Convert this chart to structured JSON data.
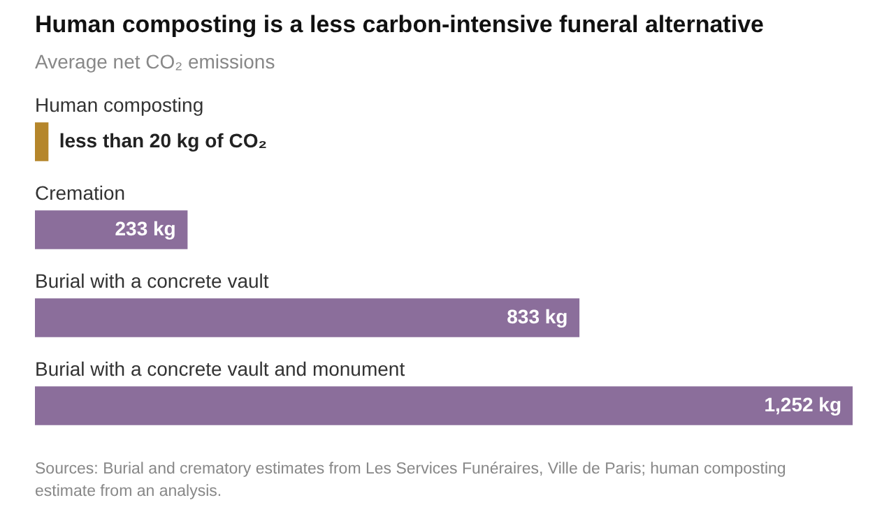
{
  "chart_data": {
    "type": "bar",
    "orientation": "horizontal",
    "title": "Human composting is a less carbon-intensive funeral alternative",
    "subtitle": "Average net CO₂ emissions",
    "categories": [
      "Human composting",
      "Cremation",
      "Burial with a concrete vault",
      "Burial with a concrete vault and monument"
    ],
    "values": [
      20,
      233,
      833,
      1252
    ],
    "colors": [
      "#b5862b",
      "#8b6e9b",
      "#8b6e9b",
      "#8b6e9b"
    ],
    "value_labels": [
      "less than 20 kg of CO₂",
      "233 kg",
      "833 kg",
      "1,252 kg"
    ],
    "legend": false,
    "annotations": [
      "Sources: Burial and crematory estimates from Les Services Funéraires, Ville de Paris; human composting estimate from an analysis."
    ]
  }
}
